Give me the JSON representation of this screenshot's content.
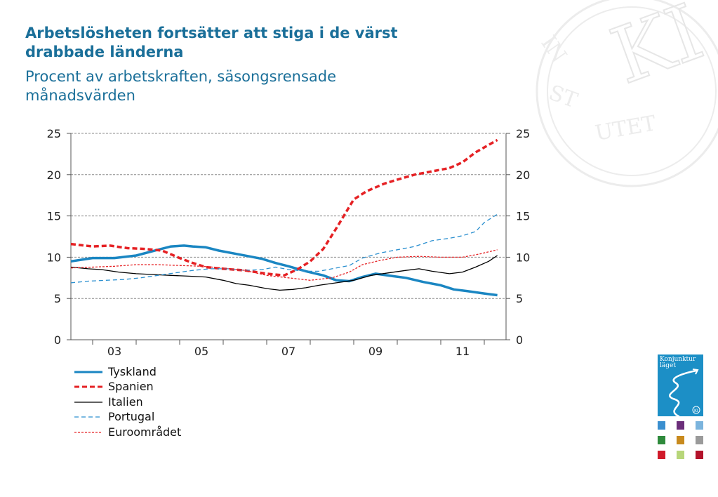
{
  "title": "Arbetslösheten fortsätter att stiga i de värst drabbade länderna",
  "subtitle": "Procent av arbetskraften, säsongsrensade månadsvärden",
  "watermark": {
    "letters": "INSTITUTET",
    "monogram": "KI"
  },
  "cover": {
    "title": "Konjunktur läget",
    "badge": "KI"
  },
  "thumb_colors": [
    "#3a8fcf",
    "#6b2e7a",
    "#7bb4dd",
    "#2f8a3c",
    "#c88a1e",
    "#9a9a9a",
    "#d01a2a",
    "#b7d67a",
    "#b3122b"
  ],
  "chart_data": {
    "type": "line",
    "x_range": [
      2002.5,
      2012.5
    ],
    "ylim": [
      0,
      25
    ],
    "y_ticks": [
      0,
      5,
      10,
      15,
      20,
      25
    ],
    "y_ticks_right": [
      0,
      5,
      10,
      15,
      20,
      25
    ],
    "x_tick_labels": [
      {
        "label": "03",
        "x": 2003.5
      },
      {
        "label": "05",
        "x": 2005.5
      },
      {
        "label": "07",
        "x": 2007.5
      },
      {
        "label": "09",
        "x": 2009.5
      },
      {
        "label": "11",
        "x": 2011.5
      }
    ],
    "grid": true,
    "legend_position": "bottom-left",
    "series": [
      {
        "name": "Tyskland",
        "color": "#1a86c2",
        "dash": "solid",
        "width": 3.5,
        "points": [
          [
            2002.5,
            9.5
          ],
          [
            2003.0,
            9.9
          ],
          [
            2003.5,
            9.9
          ],
          [
            2004.0,
            10.2
          ],
          [
            2004.5,
            10.9
          ],
          [
            2004.8,
            11.3
          ],
          [
            2005.1,
            11.4
          ],
          [
            2005.3,
            11.3
          ],
          [
            2005.6,
            11.2
          ],
          [
            2005.9,
            10.8
          ],
          [
            2006.3,
            10.4
          ],
          [
            2006.6,
            10.1
          ],
          [
            2006.9,
            9.8
          ],
          [
            2007.2,
            9.3
          ],
          [
            2007.5,
            8.9
          ],
          [
            2007.9,
            8.3
          ],
          [
            2008.3,
            7.8
          ],
          [
            2008.6,
            7.2
          ],
          [
            2008.9,
            7.1
          ],
          [
            2009.2,
            7.6
          ],
          [
            2009.5,
            8.0
          ],
          [
            2009.9,
            7.7
          ],
          [
            2010.2,
            7.5
          ],
          [
            2010.6,
            7.0
          ],
          [
            2011.0,
            6.6
          ],
          [
            2011.3,
            6.1
          ],
          [
            2011.6,
            5.9
          ],
          [
            2012.0,
            5.6
          ],
          [
            2012.3,
            5.4
          ]
        ]
      },
      {
        "name": "Spanien",
        "color": "#e52124",
        "dash": "7,4",
        "width": 3.5,
        "points": [
          [
            2002.5,
            11.6
          ],
          [
            2003.0,
            11.3
          ],
          [
            2003.4,
            11.4
          ],
          [
            2003.8,
            11.1
          ],
          [
            2004.2,
            11.0
          ],
          [
            2004.6,
            10.8
          ],
          [
            2005.0,
            9.9
          ],
          [
            2005.3,
            9.3
          ],
          [
            2005.6,
            8.8
          ],
          [
            2006.0,
            8.6
          ],
          [
            2006.5,
            8.4
          ],
          [
            2007.0,
            8.0
          ],
          [
            2007.4,
            7.8
          ],
          [
            2007.7,
            8.5
          ],
          [
            2008.0,
            9.5
          ],
          [
            2008.3,
            11.0
          ],
          [
            2008.6,
            13.5
          ],
          [
            2009.0,
            17.0
          ],
          [
            2009.3,
            18.0
          ],
          [
            2009.7,
            18.9
          ],
          [
            2010.0,
            19.4
          ],
          [
            2010.4,
            20.0
          ],
          [
            2010.8,
            20.4
          ],
          [
            2011.2,
            20.8
          ],
          [
            2011.5,
            21.5
          ],
          [
            2011.8,
            22.7
          ],
          [
            2012.3,
            24.2
          ]
        ]
      },
      {
        "name": "Italien",
        "color": "#000000",
        "dash": "solid",
        "width": 1.3,
        "points": [
          [
            2002.5,
            8.8
          ],
          [
            2002.9,
            8.6
          ],
          [
            2003.2,
            8.5
          ],
          [
            2003.6,
            8.2
          ],
          [
            2004.0,
            8.0
          ],
          [
            2004.4,
            7.9
          ],
          [
            2004.8,
            7.8
          ],
          [
            2005.2,
            7.7
          ],
          [
            2005.6,
            7.6
          ],
          [
            2006.0,
            7.2
          ],
          [
            2006.3,
            6.8
          ],
          [
            2006.6,
            6.6
          ],
          [
            2007.0,
            6.2
          ],
          [
            2007.3,
            6.0
          ],
          [
            2007.6,
            6.1
          ],
          [
            2007.9,
            6.3
          ],
          [
            2008.2,
            6.6
          ],
          [
            2008.6,
            6.9
          ],
          [
            2009.0,
            7.2
          ],
          [
            2009.4,
            7.8
          ],
          [
            2009.8,
            8.1
          ],
          [
            2010.2,
            8.4
          ],
          [
            2010.5,
            8.6
          ],
          [
            2010.8,
            8.3
          ],
          [
            2011.2,
            8.0
          ],
          [
            2011.5,
            8.2
          ],
          [
            2011.8,
            8.8
          ],
          [
            2012.1,
            9.5
          ],
          [
            2012.3,
            10.2
          ]
        ]
      },
      {
        "name": "Portugal",
        "color": "#2a8fcf",
        "dash": "6,4",
        "width": 1.3,
        "points": [
          [
            2002.5,
            6.9
          ],
          [
            2002.9,
            7.1
          ],
          [
            2003.3,
            7.2
          ],
          [
            2003.7,
            7.3
          ],
          [
            2004.1,
            7.5
          ],
          [
            2004.5,
            7.8
          ],
          [
            2004.9,
            8.1
          ],
          [
            2005.3,
            8.4
          ],
          [
            2005.7,
            8.6
          ],
          [
            2006.1,
            8.6
          ],
          [
            2006.5,
            8.4
          ],
          [
            2006.9,
            8.5
          ],
          [
            2007.2,
            8.8
          ],
          [
            2007.5,
            8.5
          ],
          [
            2007.9,
            8.3
          ],
          [
            2008.2,
            8.3
          ],
          [
            2008.5,
            8.6
          ],
          [
            2008.9,
            9.0
          ],
          [
            2009.2,
            9.9
          ],
          [
            2009.6,
            10.5
          ],
          [
            2010.0,
            10.9
          ],
          [
            2010.4,
            11.3
          ],
          [
            2010.8,
            12.0
          ],
          [
            2011.2,
            12.3
          ],
          [
            2011.5,
            12.6
          ],
          [
            2011.8,
            13.1
          ],
          [
            2012.0,
            14.2
          ],
          [
            2012.3,
            15.2
          ]
        ]
      },
      {
        "name": "Euroområdet",
        "color": "#e52124",
        "dash": "3,2",
        "width": 1.3,
        "points": [
          [
            2002.5,
            8.7
          ],
          [
            2003.0,
            8.8
          ],
          [
            2003.5,
            8.9
          ],
          [
            2004.0,
            9.1
          ],
          [
            2004.5,
            9.1
          ],
          [
            2005.0,
            9.0
          ],
          [
            2005.5,
            8.9
          ],
          [
            2006.0,
            8.7
          ],
          [
            2006.5,
            8.4
          ],
          [
            2007.0,
            7.8
          ],
          [
            2007.5,
            7.5
          ],
          [
            2008.0,
            7.2
          ],
          [
            2008.5,
            7.5
          ],
          [
            2008.9,
            8.2
          ],
          [
            2009.2,
            9.1
          ],
          [
            2009.6,
            9.6
          ],
          [
            2010.0,
            10.0
          ],
          [
            2010.5,
            10.1
          ],
          [
            2011.0,
            10.0
          ],
          [
            2011.5,
            10.0
          ],
          [
            2011.9,
            10.4
          ],
          [
            2012.3,
            10.9
          ]
        ]
      }
    ]
  }
}
